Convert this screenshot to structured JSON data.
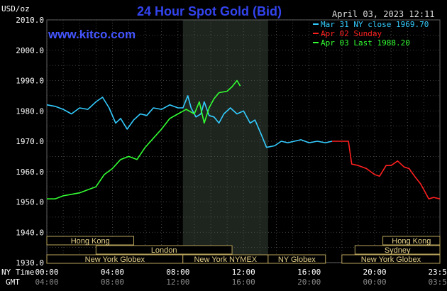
{
  "chart_data": {
    "type": "line",
    "title": "24 Hour Spot Gold (Bid)",
    "site": "www.kitco.com",
    "timestamp": "April 03, 2023 12:11",
    "unit_label": "USD/oz",
    "ylim": [
      1930,
      2010
    ],
    "y_ticks": [
      "2010.0",
      "2000.0",
      "1990.0",
      "1980.0",
      "1970.0",
      "1960.0",
      "1950.0",
      "1940.0",
      "1930.0"
    ],
    "x_ticks_ny": [
      "00:00",
      "04:00",
      "08:00",
      "12:00",
      "16:00",
      "20:00",
      "23:59"
    ],
    "x_ticks_gmt": [
      "04:00",
      "08:00",
      "12:00",
      "16:00",
      "20:00",
      "00:00",
      "03:59"
    ],
    "x_row_labels": {
      "ny": "NY Time",
      "gmt": "GMT"
    },
    "grid": true,
    "legend": [
      {
        "label": "Mar 31 NY close 1969.70",
        "color": "#33ccff"
      },
      {
        "label": "Apr 02 Sunday",
        "color": "#ff2020"
      },
      {
        "label": "Apr 03 Last 1988.20",
        "color": "#33ff33"
      }
    ],
    "series": [
      {
        "name": "Mar 31 NY close 1969.70",
        "color": "#33ccff",
        "points": [
          [
            0,
            1982
          ],
          [
            0.5,
            1981.5
          ],
          [
            1,
            1980.5
          ],
          [
            1.5,
            1979
          ],
          [
            2,
            1981
          ],
          [
            2.5,
            1980.5
          ],
          [
            3,
            1983
          ],
          [
            3.4,
            1984.5
          ],
          [
            3.8,
            1981
          ],
          [
            4.2,
            1976
          ],
          [
            4.5,
            1977.5
          ],
          [
            4.9,
            1974
          ],
          [
            5.3,
            1977
          ],
          [
            5.7,
            1979
          ],
          [
            6.1,
            1978.5
          ],
          [
            6.5,
            1981
          ],
          [
            7,
            1980.5
          ],
          [
            7.5,
            1982
          ],
          [
            8,
            1981
          ],
          [
            8.3,
            1981
          ],
          [
            8.6,
            1985
          ],
          [
            8.8,
            1981
          ],
          [
            9.1,
            1978
          ],
          [
            9.4,
            1979
          ],
          [
            9.6,
            1983
          ],
          [
            9.9,
            1978.5
          ],
          [
            10.2,
            1978
          ],
          [
            10.5,
            1976
          ],
          [
            10.8,
            1979
          ],
          [
            11.2,
            1981
          ],
          [
            11.6,
            1979
          ],
          [
            12,
            1980
          ],
          [
            12.4,
            1976
          ],
          [
            12.7,
            1977
          ],
          [
            13.1,
            1972
          ],
          [
            13.4,
            1968
          ],
          [
            13.9,
            1968.5
          ],
          [
            14.3,
            1970
          ],
          [
            14.7,
            1969.5
          ],
          [
            15.1,
            1970
          ],
          [
            15.5,
            1970.5
          ],
          [
            16,
            1969.5
          ],
          [
            16.5,
            1970
          ],
          [
            17,
            1969.5
          ],
          [
            17.4,
            1970
          ]
        ]
      },
      {
        "name": "Apr 02 Sunday",
        "color": "#ff2020",
        "points": [
          [
            17.4,
            1970
          ],
          [
            18.4,
            1970
          ],
          [
            18.6,
            1962.5
          ],
          [
            19,
            1962
          ],
          [
            19.5,
            1961
          ],
          [
            20,
            1959
          ],
          [
            20.3,
            1958.5
          ],
          [
            20.7,
            1962
          ],
          [
            21,
            1962
          ],
          [
            21.4,
            1963.5
          ],
          [
            21.8,
            1961.5
          ],
          [
            22.1,
            1961
          ],
          [
            22.5,
            1958
          ],
          [
            22.8,
            1956
          ],
          [
            23,
            1954
          ],
          [
            23.3,
            1951
          ],
          [
            23.6,
            1951.5
          ],
          [
            23.98,
            1951
          ]
        ]
      },
      {
        "name": "Apr 03 Last 1988.20",
        "color": "#33ff33",
        "points": [
          [
            0,
            1951
          ],
          [
            0.5,
            1951
          ],
          [
            1,
            1952
          ],
          [
            1.5,
            1952.5
          ],
          [
            2,
            1953
          ],
          [
            2.5,
            1954
          ],
          [
            3,
            1955
          ],
          [
            3.5,
            1959
          ],
          [
            4,
            1961
          ],
          [
            4.5,
            1964
          ],
          [
            5,
            1965
          ],
          [
            5.5,
            1964
          ],
          [
            6,
            1968
          ],
          [
            6.5,
            1971
          ],
          [
            7,
            1974
          ],
          [
            7.5,
            1977.5
          ],
          [
            8,
            1979
          ],
          [
            8.5,
            1980.5
          ],
          [
            9,
            1979
          ],
          [
            9.3,
            1983
          ],
          [
            9.6,
            1976
          ],
          [
            9.9,
            1981
          ],
          [
            10.2,
            1984
          ],
          [
            10.5,
            1986
          ],
          [
            11,
            1986.5
          ],
          [
            11.3,
            1988
          ],
          [
            11.6,
            1990
          ],
          [
            11.8,
            1988.2
          ]
        ]
      }
    ],
    "sessions": [
      {
        "label": "Hong Kong",
        "start": 0,
        "end": 5.3,
        "row": 0
      },
      {
        "label": "Hong Kong",
        "start": 20.5,
        "end": 23.98,
        "row": 0
      },
      {
        "label": "London",
        "start": 3.0,
        "end": 11.3,
        "row": 1
      },
      {
        "label": "Sydney",
        "start": 18.8,
        "end": 23.98,
        "row": 1
      },
      {
        "label": "New York Globex",
        "start": 0,
        "end": 8.3,
        "row": 2
      },
      {
        "label": "New York NYMEX",
        "start": 8.3,
        "end": 13.5,
        "row": 2
      },
      {
        "label": "NY Globex",
        "start": 13.5,
        "end": 17.0,
        "row": 2
      },
      {
        "label": "New York Globex",
        "start": 18.0,
        "end": 23.98,
        "row": 2
      }
    ],
    "highlight_window": [
      8.3,
      13.5
    ]
  }
}
